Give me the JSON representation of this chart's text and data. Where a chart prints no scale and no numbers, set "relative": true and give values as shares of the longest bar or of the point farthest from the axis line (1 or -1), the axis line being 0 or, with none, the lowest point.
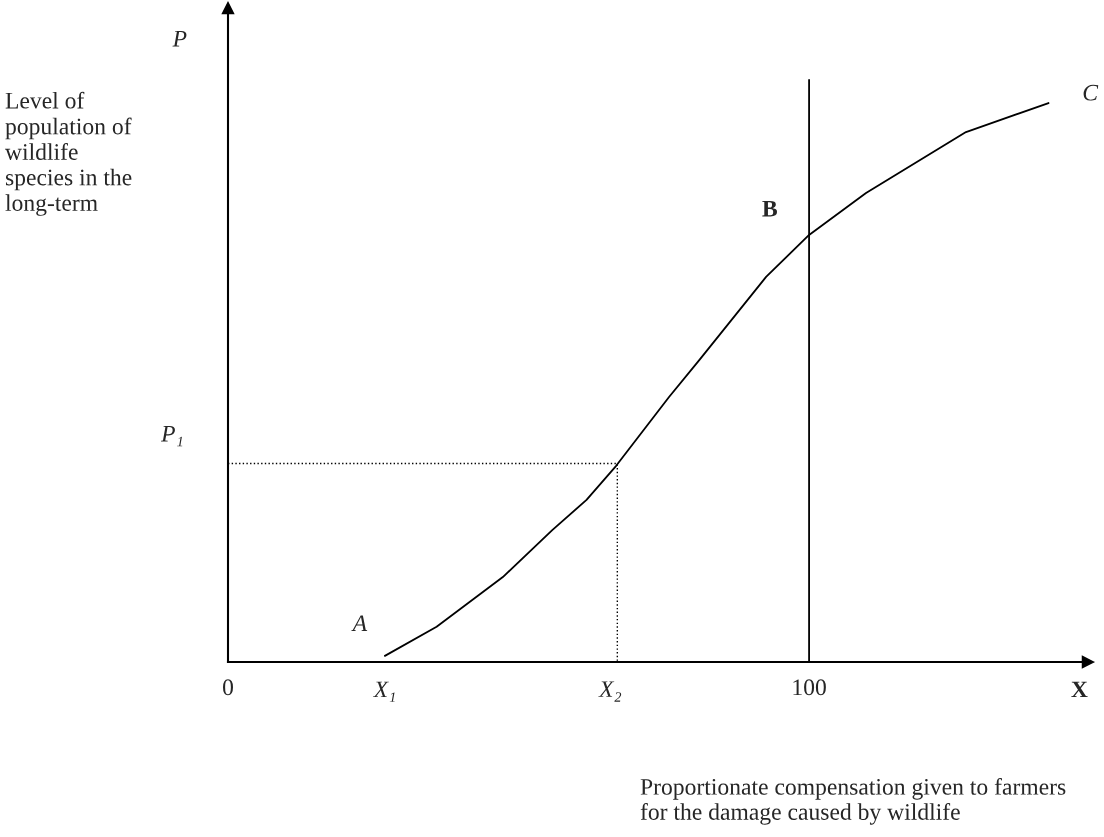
{
  "chart_data": {
    "type": "line",
    "relative": true,
    "ylabel": "Level of\npopulation of\nwildlife\nspecies in the\nlong-term",
    "xlabel": "Proportionate compensation given to farmers\nfor the damage caused by wildlife",
    "xlim": [
      0,
      148
    ],
    "xticks": [
      0,
      100
    ],
    "series": [
      {
        "color": "#000000",
        "line_style": "solid",
        "x": [
          27.0,
          35.9,
          47.3,
          55.8,
          61.7,
          66.8,
          75.9,
          81.1,
          92.6,
          100,
          109.8,
          127.0,
          141.2
        ],
        "values": [
          0.011,
          0.063,
          0.152,
          0.236,
          0.29,
          0.351,
          0.474,
          0.54,
          0.689,
          0.764,
          0.839,
          0.948,
          1
        ]
      },
      {
        "color": "#000000",
        "line_style": "dotted",
        "x": [
          0,
          67,
          67
        ],
        "values": [
          0.355,
          0.355,
          0
        ]
      }
    ],
    "ref_lines": [
      {
        "axis": "x",
        "value": 100,
        "color": "#000000",
        "line_style": "solid"
      }
    ],
    "annotations": [
      "P",
      {
        "text": "P₁",
        "x": 0,
        "y": 0.355
      },
      {
        "text": "A",
        "x": 27,
        "y": 0.011
      },
      "B",
      {
        "text": "C",
        "x": 141.2,
        "y": 1
      },
      "X₁",
      {
        "text": "X₂",
        "x": 67,
        "y": 0
      },
      "X"
    ],
    "legend": false,
    "grid": false,
    "marker": "none"
  }
}
